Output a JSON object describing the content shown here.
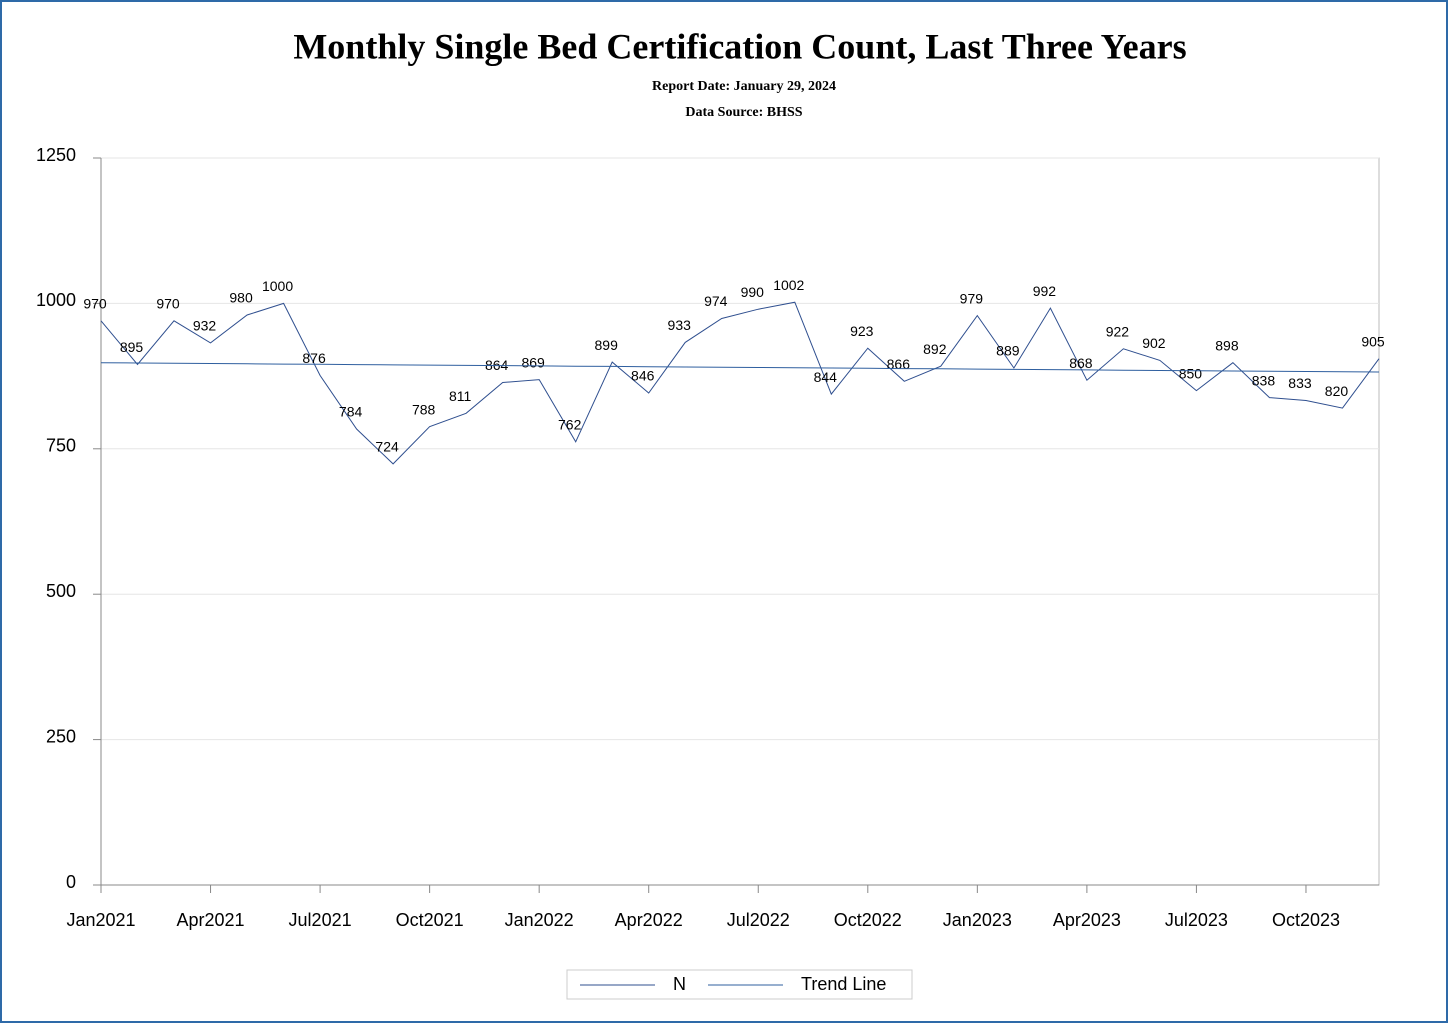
{
  "chart_data": {
    "type": "line",
    "title": "Monthly Single Bed Certification Count, Last Three Years",
    "subtitle": "Report Date: January 29, 2024",
    "source": "Data Source: BHSS",
    "categories": [
      "Jan2021",
      null,
      null,
      "Apr2021",
      null,
      null,
      "Jul2021",
      null,
      null,
      "Oct2021",
      null,
      null,
      "Jan2022",
      null,
      null,
      "Apr2022",
      null,
      null,
      "Jul2022",
      null,
      null,
      "Oct2022",
      null,
      null,
      "Jan2023",
      null,
      null,
      "Apr2023",
      null,
      null,
      "Jul2023",
      null,
      null,
      "Oct2023",
      null,
      null
    ],
    "series": [
      {
        "name": "N",
        "color": "#2f4f8f",
        "values": [
          970,
          895,
          970,
          932,
          980,
          1000,
          876,
          784,
          724,
          788,
          811,
          864,
          869,
          762,
          899,
          846,
          933,
          974,
          990,
          1002,
          844,
          923,
          866,
          892,
          979,
          889,
          992,
          868,
          922,
          902,
          850,
          898,
          838,
          833,
          820,
          905
        ]
      },
      {
        "name": "Trend Line",
        "color": "#2f5f9f",
        "values": [
          898.0,
          897.5,
          897.1,
          896.6,
          896.2,
          895.7,
          895.3,
          894.8,
          894.3,
          893.9,
          893.4,
          893.0,
          892.5,
          892.1,
          891.6,
          891.1,
          890.7,
          890.2,
          889.8,
          889.3,
          888.9,
          888.4,
          887.9,
          887.5,
          887.0,
          886.6,
          886.1,
          885.7,
          885.2,
          884.7,
          884.3,
          883.8,
          883.4,
          882.9,
          882.5,
          882.0
        ]
      }
    ],
    "ylim": [
      0,
      1250
    ],
    "yticks": [
      0,
      250,
      500,
      750,
      1000,
      1250
    ],
    "grid": true,
    "legend": "bottom"
  }
}
